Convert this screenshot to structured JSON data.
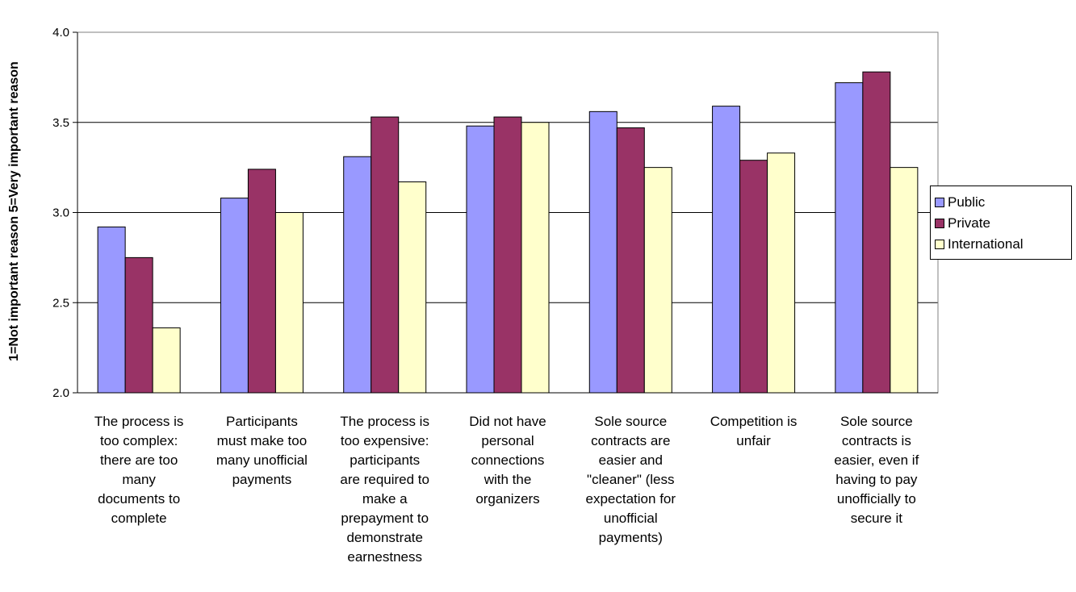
{
  "chart_data": {
    "type": "bar",
    "title": "",
    "xlabel": "",
    "ylabel": "1=Not important reason 5=Very important reason",
    "ylim": [
      2.0,
      4.0
    ],
    "yticks": [
      "2.0",
      "2.5",
      "3.0",
      "3.5",
      "4.0"
    ],
    "grid": true,
    "legend_position": "right",
    "categories": [
      "The process is too complex: there are too many documents to complete",
      "Participants must make too many unofficial payments",
      "The process is too expensive: participants are required to make a prepayment to demonstrate earnestness",
      "Did not have personal connections with the organizers",
      "Sole source contracts are easier and \"cleaner\" (less expectation for unofficial payments)",
      "Competition is unfair",
      "Sole source contracts is easier, even if having to pay unofficially to secure it"
    ],
    "series": [
      {
        "name": "Public",
        "color": "#9999ff",
        "values": [
          2.92,
          3.08,
          3.31,
          3.48,
          3.56,
          3.59,
          3.72
        ]
      },
      {
        "name": "Private",
        "color": "#993366",
        "values": [
          2.75,
          3.24,
          3.53,
          3.53,
          3.47,
          3.29,
          3.78
        ]
      },
      {
        "name": "International",
        "color": "#ffffcc",
        "values": [
          2.36,
          3.0,
          3.17,
          3.5,
          3.25,
          3.33,
          3.25
        ]
      }
    ]
  }
}
